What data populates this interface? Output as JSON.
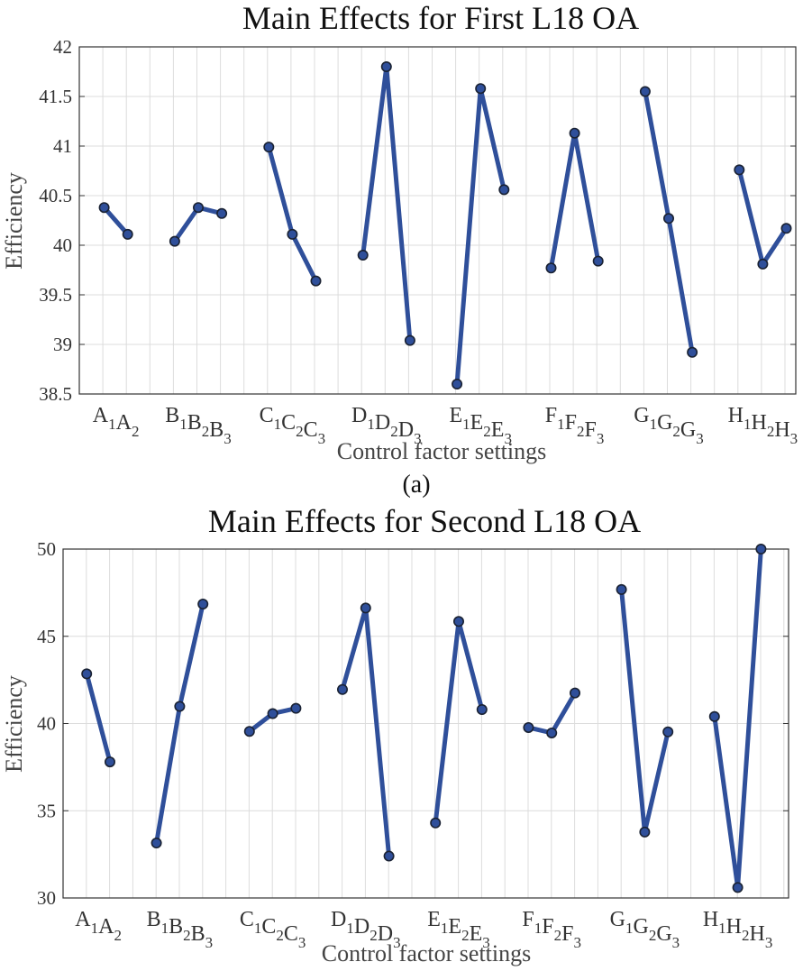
{
  "chart_data": [
    {
      "type": "line",
      "title": "Main Effects for First L18 OA",
      "xlabel": "Control factor settings",
      "ylabel": "Efficiency",
      "caption": "(a)",
      "ylim": [
        38.5,
        42
      ],
      "yticks": [
        "38.5",
        "39",
        "39.5",
        "40",
        "40.5",
        "41",
        "41.5",
        "42"
      ],
      "grid": true,
      "colors": {
        "line": "#2f4f9a",
        "marker_edge": "#1a2233"
      },
      "groups": [
        {
          "factor": "A",
          "levels": [
            "1",
            "2"
          ],
          "values": [
            40.38,
            40.11
          ]
        },
        {
          "factor": "B",
          "levels": [
            "1",
            "2",
            "3"
          ],
          "values": [
            40.04,
            40.38,
            40.32
          ]
        },
        {
          "factor": "C",
          "levels": [
            "1",
            "2",
            "3"
          ],
          "values": [
            40.99,
            40.11,
            39.64
          ]
        },
        {
          "factor": "D",
          "levels": [
            "1",
            "2",
            "3"
          ],
          "values": [
            39.9,
            41.8,
            39.04
          ]
        },
        {
          "factor": "E",
          "levels": [
            "1",
            "2",
            "3"
          ],
          "values": [
            38.6,
            41.58,
            40.56
          ]
        },
        {
          "factor": "F",
          "levels": [
            "1",
            "2",
            "3"
          ],
          "values": [
            39.77,
            41.13,
            39.84
          ]
        },
        {
          "factor": "G",
          "levels": [
            "1",
            "2",
            "3"
          ],
          "values": [
            41.55,
            40.27,
            38.92
          ]
        },
        {
          "factor": "H",
          "levels": [
            "1",
            "2",
            "3"
          ],
          "values": [
            40.76,
            39.81,
            40.17
          ]
        }
      ]
    },
    {
      "type": "line",
      "title": "Main Effects for Second L18 OA",
      "xlabel": "Control factor settings",
      "ylabel": "Efficiency",
      "ylim": [
        30,
        50
      ],
      "yticks": [
        "30",
        "35",
        "40",
        "45",
        "50"
      ],
      "grid": true,
      "colors": {
        "line": "#2f4f9a",
        "marker_edge": "#1a2233"
      },
      "groups": [
        {
          "factor": "A",
          "levels": [
            "1",
            "2"
          ],
          "values": [
            42.85,
            37.8
          ]
        },
        {
          "factor": "B",
          "levels": [
            "1",
            "2",
            "3"
          ],
          "values": [
            33.15,
            40.98,
            46.85
          ]
        },
        {
          "factor": "C",
          "levels": [
            "1",
            "2",
            "3"
          ],
          "values": [
            39.55,
            40.57,
            40.87
          ]
        },
        {
          "factor": "D",
          "levels": [
            "1",
            "2",
            "3"
          ],
          "values": [
            41.95,
            46.62,
            32.4
          ]
        },
        {
          "factor": "E",
          "levels": [
            "1",
            "2",
            "3"
          ],
          "values": [
            34.3,
            45.85,
            40.8
          ]
        },
        {
          "factor": "F",
          "levels": [
            "1",
            "2",
            "3"
          ],
          "values": [
            39.77,
            39.46,
            41.75
          ]
        },
        {
          "factor": "G",
          "levels": [
            "1",
            "2",
            "3"
          ],
          "values": [
            47.68,
            33.78,
            39.52
          ]
        },
        {
          "factor": "H",
          "levels": [
            "1",
            "2",
            "3"
          ],
          "values": [
            40.4,
            30.6,
            50.0
          ]
        }
      ]
    }
  ]
}
